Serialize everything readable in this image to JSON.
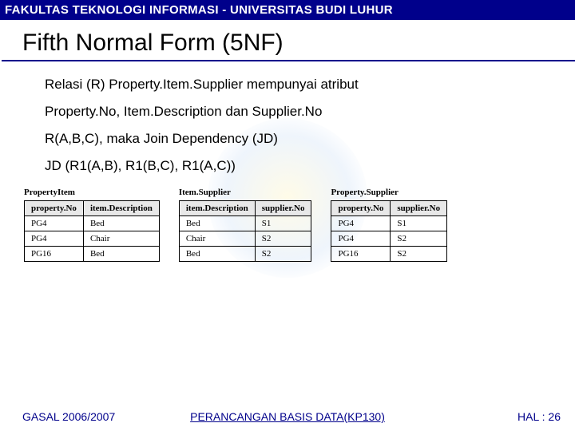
{
  "header": {
    "text": "FAKULTAS TEKNOLOGI INFORMASI - UNIVERSITAS BUDI LUHUR"
  },
  "title": "Fifth Normal Form (5NF)",
  "paragraphs": [
    "Relasi (R) Property.Item.Supplier mempunyai atribut",
    "Property.No, Item.Description dan Supplier.No",
    "R(A,B,C), maka Join Dependency (JD)",
    "JD (R1(A,B), R1(B,C), R1(A,C))"
  ],
  "tables": [
    {
      "title": "PropertyItem",
      "columns": [
        "property.No",
        "item.Description"
      ],
      "rows": [
        [
          "PG4",
          "Bed"
        ],
        [
          "PG4",
          "Chair"
        ],
        [
          "PG16",
          "Bed"
        ]
      ]
    },
    {
      "title": "Item.Supplier",
      "columns": [
        "item.Description",
        "supplier.No"
      ],
      "rows": [
        [
          "Bed",
          "S1"
        ],
        [
          "Chair",
          "S2"
        ],
        [
          "Bed",
          "S2"
        ]
      ]
    },
    {
      "title": "Property.Supplier",
      "columns": [
        "property.No",
        "supplier.No"
      ],
      "rows": [
        [
          "PG4",
          "S1"
        ],
        [
          "PG4",
          "S2"
        ],
        [
          "PG16",
          "S2"
        ]
      ]
    }
  ],
  "footer": {
    "left": "GASAL 2006/2007",
    "center": "PERANCANGAN BASIS DATA(KP130)",
    "right": "HAL : 26"
  }
}
